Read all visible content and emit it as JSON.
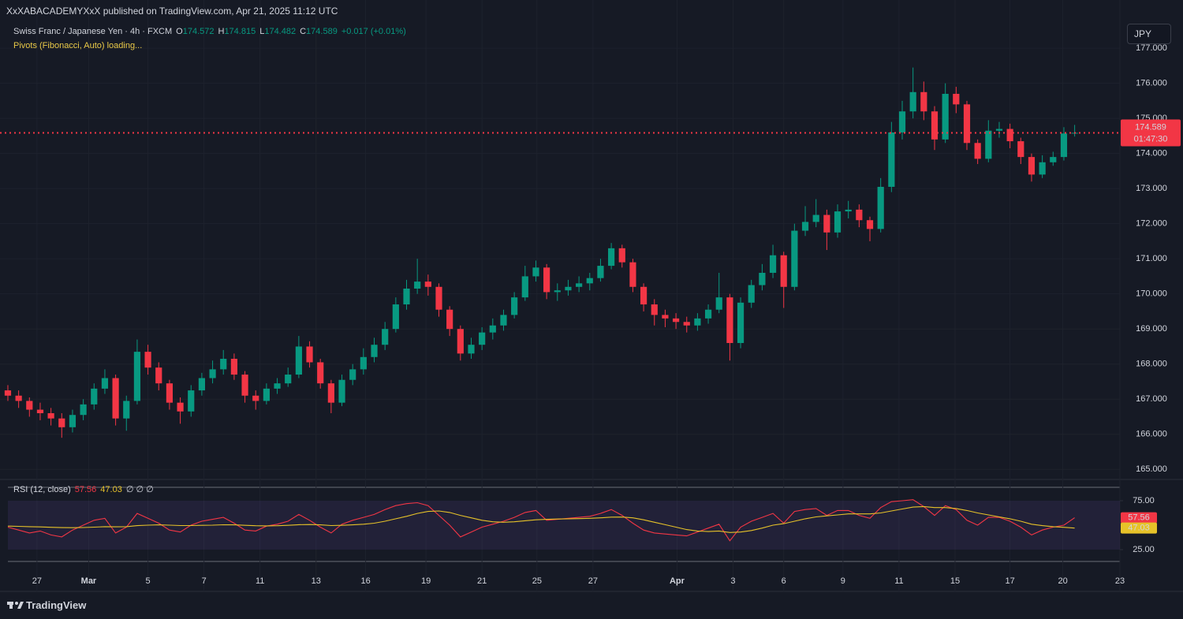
{
  "header": {
    "published": "XxXABACADEMYXxX published on TradingView.com, Apr 21, 2025 11:12 UTC"
  },
  "footer": {
    "brand": "TradingView"
  },
  "chart_data": [
    {
      "type": "candlestick",
      "title": "Swiss Franc / Japanese Yen · 4h · FXCM",
      "ohlc_labels": [
        "O",
        "H",
        "L",
        "C"
      ],
      "change_label": "+0.017 (+0.01%)",
      "indicators": [
        "Pivots (Fibonacci, Auto) loading..."
      ],
      "countdown": "01:47:30",
      "currency": "JPY",
      "up_color": "#089981",
      "down_color": "#f23645",
      "grid": true,
      "open": [
        167.25,
        167.1,
        166.95,
        166.7,
        166.6,
        166.45,
        166.2,
        166.55,
        166.85,
        167.3,
        167.6,
        166.45,
        166.95,
        168.35,
        167.9,
        167.45,
        166.9,
        166.65,
        167.25,
        167.6,
        167.85,
        168.15,
        167.7,
        167.1,
        166.95,
        167.3,
        167.45,
        167.7,
        168.5,
        168.05,
        167.45,
        166.9,
        167.55,
        167.85,
        168.2,
        168.55,
        169.0,
        169.7,
        170.15,
        170.35,
        170.2,
        169.55,
        169.0,
        168.3,
        168.55,
        168.9,
        169.1,
        169.4,
        169.9,
        170.5,
        170.75,
        170.05,
        170.1,
        170.2,
        170.3,
        170.45,
        170.8,
        171.3,
        170.9,
        170.2,
        169.7,
        169.4,
        169.3,
        169.2,
        169.1,
        169.3,
        169.55,
        169.9,
        168.6,
        169.75,
        170.25,
        170.6,
        171.1,
        170.2,
        171.8,
        172.05,
        172.25,
        171.75,
        172.35,
        172.4,
        172.1,
        171.85,
        173.05,
        174.6,
        175.2,
        175.75,
        175.2,
        174.4,
        175.7,
        175.4,
        174.3,
        173.85,
        174.65,
        174.7,
        174.35,
        173.9,
        173.4,
        173.75,
        173.9,
        174.572
      ],
      "high": [
        167.4,
        167.25,
        167.05,
        166.9,
        166.75,
        166.6,
        166.7,
        167.0,
        167.45,
        167.85,
        167.7,
        167.1,
        168.7,
        168.55,
        168.05,
        167.55,
        167.05,
        167.4,
        167.75,
        168.1,
        168.4,
        168.3,
        167.8,
        167.25,
        167.45,
        167.6,
        167.9,
        168.8,
        168.65,
        168.15,
        167.55,
        167.7,
        168.0,
        168.45,
        168.75,
        169.2,
        169.9,
        170.4,
        171.0,
        170.55,
        170.3,
        169.65,
        169.1,
        168.75,
        169.05,
        169.3,
        169.55,
        170.05,
        170.8,
        170.95,
        170.85,
        170.3,
        170.4,
        170.5,
        170.6,
        171.0,
        171.45,
        171.4,
        171.0,
        170.3,
        169.85,
        169.55,
        169.45,
        169.35,
        169.45,
        169.7,
        170.6,
        170.0,
        169.9,
        170.4,
        170.85,
        171.4,
        171.2,
        172.0,
        172.5,
        172.7,
        172.4,
        172.55,
        172.65,
        172.55,
        172.2,
        173.3,
        174.9,
        175.5,
        176.45,
        176.05,
        175.35,
        176.0,
        175.9,
        175.5,
        174.4,
        174.95,
        174.9,
        174.85,
        174.45,
        174.0,
        173.95,
        174.05,
        174.75,
        174.815
      ],
      "low": [
        166.95,
        166.75,
        166.5,
        166.4,
        166.25,
        165.9,
        166.05,
        166.4,
        166.7,
        167.15,
        166.25,
        166.1,
        166.85,
        167.7,
        167.25,
        166.7,
        166.3,
        166.5,
        167.1,
        167.45,
        167.7,
        167.55,
        166.9,
        166.7,
        166.85,
        167.15,
        167.35,
        167.6,
        167.9,
        167.3,
        166.6,
        166.8,
        167.4,
        167.7,
        168.05,
        168.4,
        168.9,
        169.55,
        170.0,
        169.95,
        169.35,
        168.8,
        168.1,
        168.15,
        168.4,
        168.7,
        168.95,
        169.3,
        169.8,
        170.35,
        169.85,
        169.8,
        169.95,
        170.05,
        170.1,
        170.35,
        170.7,
        170.75,
        170.05,
        169.5,
        169.1,
        169.05,
        169.0,
        168.9,
        168.95,
        169.15,
        169.45,
        168.1,
        168.45,
        169.6,
        170.1,
        170.45,
        169.6,
        170.1,
        171.65,
        171.9,
        171.25,
        171.6,
        172.15,
        171.9,
        171.5,
        171.75,
        172.9,
        174.4,
        175.0,
        174.95,
        174.1,
        174.3,
        175.15,
        174.1,
        173.7,
        173.75,
        174.45,
        174.15,
        173.7,
        173.2,
        173.3,
        173.65,
        173.8,
        174.482
      ],
      "close": [
        167.1,
        166.95,
        166.7,
        166.6,
        166.45,
        166.2,
        166.55,
        166.85,
        167.3,
        167.6,
        166.45,
        166.95,
        168.35,
        167.9,
        167.45,
        166.9,
        166.65,
        167.25,
        167.6,
        167.85,
        168.15,
        167.7,
        167.1,
        166.95,
        167.3,
        167.45,
        167.7,
        168.5,
        168.05,
        167.45,
        166.9,
        167.55,
        167.85,
        168.2,
        168.55,
        169.0,
        169.7,
        170.15,
        170.35,
        170.2,
        169.55,
        169.0,
        168.3,
        168.55,
        168.9,
        169.1,
        169.4,
        169.9,
        170.5,
        170.75,
        170.05,
        170.1,
        170.2,
        170.3,
        170.45,
        170.8,
        171.3,
        170.9,
        170.2,
        169.7,
        169.4,
        169.3,
        169.2,
        169.1,
        169.3,
        169.55,
        169.9,
        168.6,
        169.75,
        170.25,
        170.6,
        171.1,
        170.2,
        171.8,
        172.05,
        172.25,
        171.75,
        172.35,
        172.4,
        172.1,
        171.85,
        173.05,
        174.6,
        175.2,
        175.75,
        175.2,
        174.4,
        175.7,
        175.4,
        174.3,
        173.85,
        174.65,
        174.7,
        174.35,
        173.9,
        173.4,
        173.75,
        173.9,
        174.57,
        174.589
      ],
      "xlim": [
        -0.73,
        103.2
      ],
      "xticks": [
        {
          "value": 2.7,
          "label": "27"
        },
        {
          "value": 7.5,
          "label": "Mar"
        },
        {
          "value": 13.0,
          "label": "5"
        },
        {
          "value": 18.2,
          "label": "7"
        },
        {
          "value": 23.4,
          "label": "11"
        },
        {
          "value": 28.6,
          "label": "13"
        },
        {
          "value": 33.2,
          "label": "16"
        },
        {
          "value": 38.8,
          "label": "19"
        },
        {
          "value": 44.0,
          "label": "21"
        },
        {
          "value": 49.1,
          "label": "25"
        },
        {
          "value": 54.3,
          "label": "27"
        },
        {
          "value": 62.1,
          "label": "Apr"
        },
        {
          "value": 67.3,
          "label": "3"
        },
        {
          "value": 72.0,
          "label": "6"
        },
        {
          "value": 77.5,
          "label": "9"
        },
        {
          "value": 82.7,
          "label": "11"
        },
        {
          "value": 87.9,
          "label": "15"
        },
        {
          "value": 93.0,
          "label": "17"
        },
        {
          "value": 97.9,
          "label": "20"
        },
        {
          "value": 103.2,
          "label": "23"
        }
      ],
      "ylim": [
        164.78,
        177.7
      ],
      "yticks": [
        {
          "value": 165,
          "label": "165.000"
        },
        {
          "value": 166,
          "label": "166.000"
        },
        {
          "value": 167,
          "label": "167.000"
        },
        {
          "value": 168,
          "label": "168.000"
        },
        {
          "value": 169,
          "label": "169.000"
        },
        {
          "value": 170,
          "label": "170.000"
        },
        {
          "value": 171,
          "label": "171.000"
        },
        {
          "value": 172,
          "label": "172.000"
        },
        {
          "value": 173,
          "label": "173.000"
        },
        {
          "value": 174,
          "label": "174.000"
        },
        {
          "value": 175,
          "label": "175.000"
        },
        {
          "value": 176,
          "label": "176.000"
        },
        {
          "value": 177,
          "label": "177.000"
        }
      ]
    },
    {
      "type": "line",
      "title": "RSI (12, close)",
      "extra_label": "∅ ∅ ∅",
      "band_color": "rgba(126,87,194,0.12)",
      "ylim": [
        12.9,
        88.7
      ],
      "yticks": [
        {
          "value": 25,
          "label": "25.00"
        },
        {
          "value": 75,
          "label": "75.00"
        }
      ],
      "series": [
        {
          "color": "#f23645",
          "values": [
            48,
            45,
            42,
            44,
            40,
            38,
            45,
            50,
            55,
            57,
            42,
            48,
            62,
            57,
            52,
            45,
            43,
            50,
            54,
            56,
            58,
            52,
            45,
            44,
            49,
            51,
            54,
            61,
            55,
            48,
            42,
            51,
            55,
            58,
            61,
            66,
            70,
            72,
            73,
            70,
            60,
            50,
            38,
            43,
            48,
            51,
            54,
            58,
            63,
            65,
            55,
            56,
            57,
            58,
            59,
            62,
            66,
            60,
            52,
            45,
            42,
            41,
            40,
            39,
            43,
            47,
            51,
            34,
            48,
            54,
            58,
            62,
            52,
            64,
            66,
            67,
            60,
            65,
            65,
            60,
            57,
            68,
            74,
            75,
            76,
            69,
            60,
            70,
            66,
            55,
            50,
            58,
            58,
            54,
            48,
            40,
            45,
            48,
            50,
            57.56
          ]
        },
        {
          "color": "#e6c229",
          "values": [
            49,
            48.8,
            48.5,
            48.2,
            47.8,
            47.5,
            47.4,
            47.6,
            48,
            48.5,
            48.3,
            48.5,
            49.5,
            50,
            50.3,
            50,
            49.6,
            49.6,
            49.8,
            50,
            50.4,
            50.3,
            49.8,
            49.4,
            49.3,
            49.4,
            49.8,
            50.5,
            50.6,
            50.3,
            49.6,
            49.8,
            50.3,
            51,
            52,
            54,
            56.5,
            59,
            62,
            64,
            64.5,
            63,
            60,
            57.5,
            55,
            53.5,
            53,
            53.5,
            54.5,
            55.5,
            56,
            56.3,
            56.5,
            56.7,
            57,
            57.5,
            58.2,
            58.3,
            57.5,
            55.5,
            53,
            50.5,
            48,
            45.5,
            44,
            43.5,
            44,
            42.5,
            43,
            44.5,
            47,
            50,
            51.5,
            54,
            56.5,
            58.5,
            59.5,
            60.5,
            61.5,
            61.5,
            61.5,
            62.5,
            64.5,
            66.5,
            68.5,
            69,
            68,
            68,
            67,
            65,
            62.5,
            60.5,
            58.5,
            56.5,
            54,
            51,
            49.5,
            48.5,
            47.8,
            47.03
          ]
        }
      ]
    }
  ]
}
